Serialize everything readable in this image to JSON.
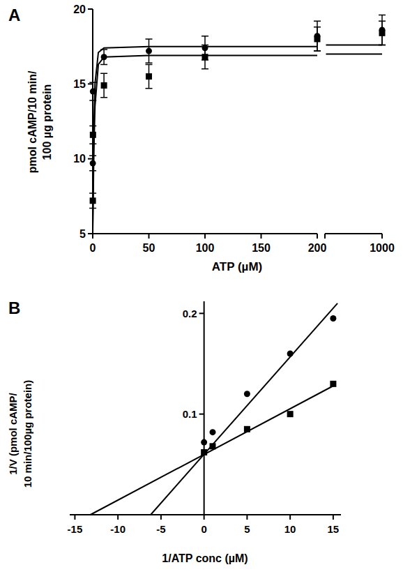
{
  "chart_data": [
    {
      "type": "scatter",
      "title": "A",
      "xlabel": "ATP (µM)",
      "ylabel": [
        "pmol cAMP/10 min/",
        "100 µg protein"
      ],
      "xlim": [
        0,
        1000
      ],
      "xticks": [
        0,
        50,
        100,
        150,
        200,
        1000
      ],
      "ylim": [
        5,
        20
      ],
      "yticks": [
        5,
        10,
        15,
        20
      ],
      "grid": false,
      "series": [
        {
          "marker": "circle",
          "color": "#000000",
          "x": [
            0.067,
            0.2,
            10,
            50,
            100,
            200,
            1000
          ],
          "values": [
            9.7,
            14.5,
            16.8,
            17.2,
            17.4,
            18.2,
            18.6
          ],
          "errors": [
            0.5,
            0.6,
            0.5,
            0.8,
            0.8,
            1.0,
            1.0
          ]
        },
        {
          "marker": "square",
          "color": "#000000",
          "x": [
            0.067,
            0.2,
            10,
            50,
            100,
            200,
            1000
          ],
          "values": [
            7.2,
            11.6,
            14.9,
            15.5,
            16.8,
            18.0,
            18.4
          ],
          "errors": [
            0.5,
            0.6,
            0.8,
            0.8,
            0.8,
            0.8,
            0.8
          ]
        },
        {
          "type": "line",
          "line_style": "solid",
          "color": "#000000",
          "x": [
            0,
            1,
            2,
            5,
            10,
            50,
            100,
            200,
            950,
            1000
          ],
          "values": [
            5.5,
            12,
            15,
            17.1,
            17.4,
            17.5,
            17.5,
            17.5,
            17.6,
            17.6
          ]
        },
        {
          "type": "line",
          "line_style": "solid",
          "color": "#000000",
          "x": [
            0,
            1,
            2,
            5,
            10,
            50,
            100,
            200,
            950,
            1000
          ],
          "values": [
            5.0,
            10.5,
            13.5,
            16.3,
            16.8,
            16.9,
            16.9,
            16.9,
            17.0,
            17.0
          ]
        }
      ]
    },
    {
      "type": "scatter",
      "title": "B",
      "xlabel": "1/ATP conc (µM)",
      "ylabel": [
        "1/V (pmol cAMP/",
        "10 min/100µg protein)"
      ],
      "xlim": [
        -15.6,
        15.9
      ],
      "xticks": [
        -15,
        -10,
        -5,
        0,
        5,
        10,
        15
      ],
      "ylim": [
        0,
        0.212
      ],
      "yticks": [
        0.1,
        0.2
      ],
      "grid": false,
      "series": [
        {
          "marker": "circle",
          "color": "#000000",
          "x": [
            0,
            1,
            5,
            10,
            15
          ],
          "values": [
            0.072,
            0.082,
            0.12,
            0.16,
            0.195
          ]
        },
        {
          "marker": "square",
          "color": "#000000",
          "x": [
            0,
            1,
            5,
            10,
            15
          ],
          "values": [
            0.062,
            0.068,
            0.085,
            0.1,
            0.13
          ]
        },
        {
          "type": "line",
          "line_style": "solid",
          "color": "#000000",
          "x": [
            -6.2,
            15.5
          ],
          "values": [
            0,
            0.21
          ]
        },
        {
          "type": "line",
          "line_style": "solid",
          "color": "#000000",
          "x": [
            -13.2,
            15
          ],
          "values": [
            0,
            0.128
          ]
        }
      ]
    }
  ]
}
